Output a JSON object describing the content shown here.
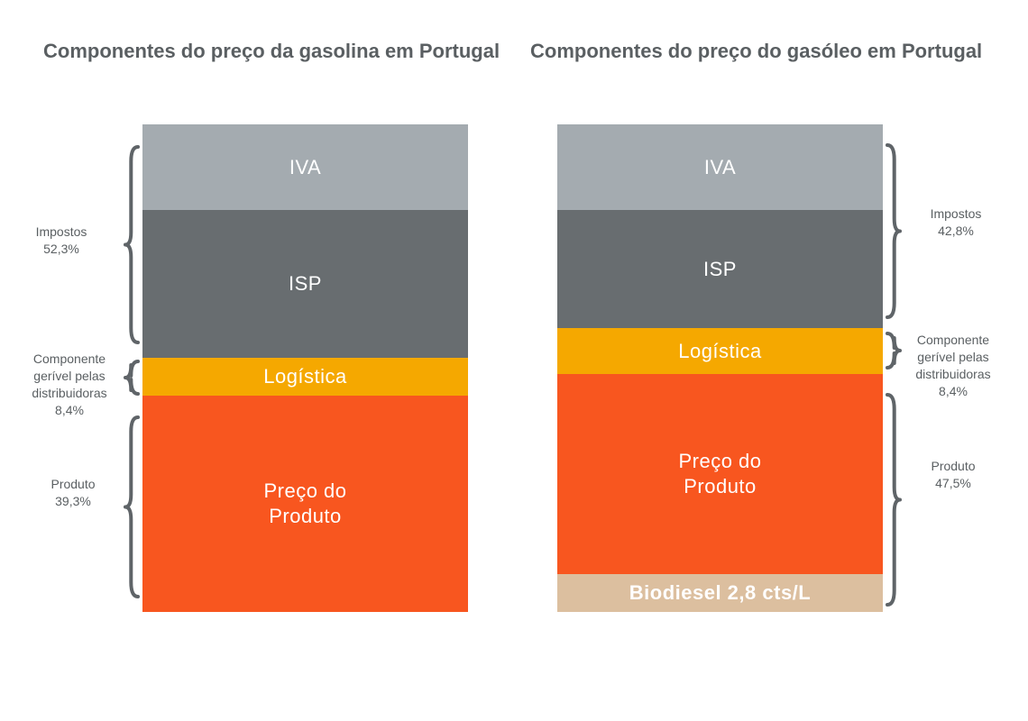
{
  "chart_data": [
    {
      "type": "bar",
      "stacked": true,
      "title": "Componentes do preço da gasolina em Portugal",
      "segments": [
        {
          "label": "IVA",
          "color": "#a4abb0"
        },
        {
          "label": "ISP",
          "color": "#686d70"
        },
        {
          "label": "Logística",
          "color": "#f5a800"
        },
        {
          "label": "Preço do\nProduto",
          "color": "#f8561f"
        }
      ],
      "groups": [
        {
          "label": "Impostos\n52,3%",
          "value": 52.3
        },
        {
          "label": "Componente\ngerível pelas\ndistribuidoras\n8,4%",
          "value": 8.4
        },
        {
          "label": "Produto\n39,3%",
          "value": 39.3
        }
      ]
    },
    {
      "type": "bar",
      "stacked": true,
      "title": "Componentes do preço do gasóleo em Portugal",
      "segments": [
        {
          "label": "IVA",
          "color": "#a4abb0"
        },
        {
          "label": "ISP",
          "color": "#686d70"
        },
        {
          "label": "Logística",
          "color": "#f5a800"
        },
        {
          "label": "Preço do\nProduto",
          "color": "#f8561f"
        },
        {
          "label": "Biodiesel 2,8 cts/L",
          "color": "#dcbf9f"
        }
      ],
      "groups": [
        {
          "label": "Impostos\n42,8%",
          "value": 42.8
        },
        {
          "label": "Componente\ngerível pelas\ndistribuidoras\n8,4%",
          "value": 8.4
        },
        {
          "label": "Produto\n47,5%",
          "value": 47.5
        }
      ]
    }
  ]
}
